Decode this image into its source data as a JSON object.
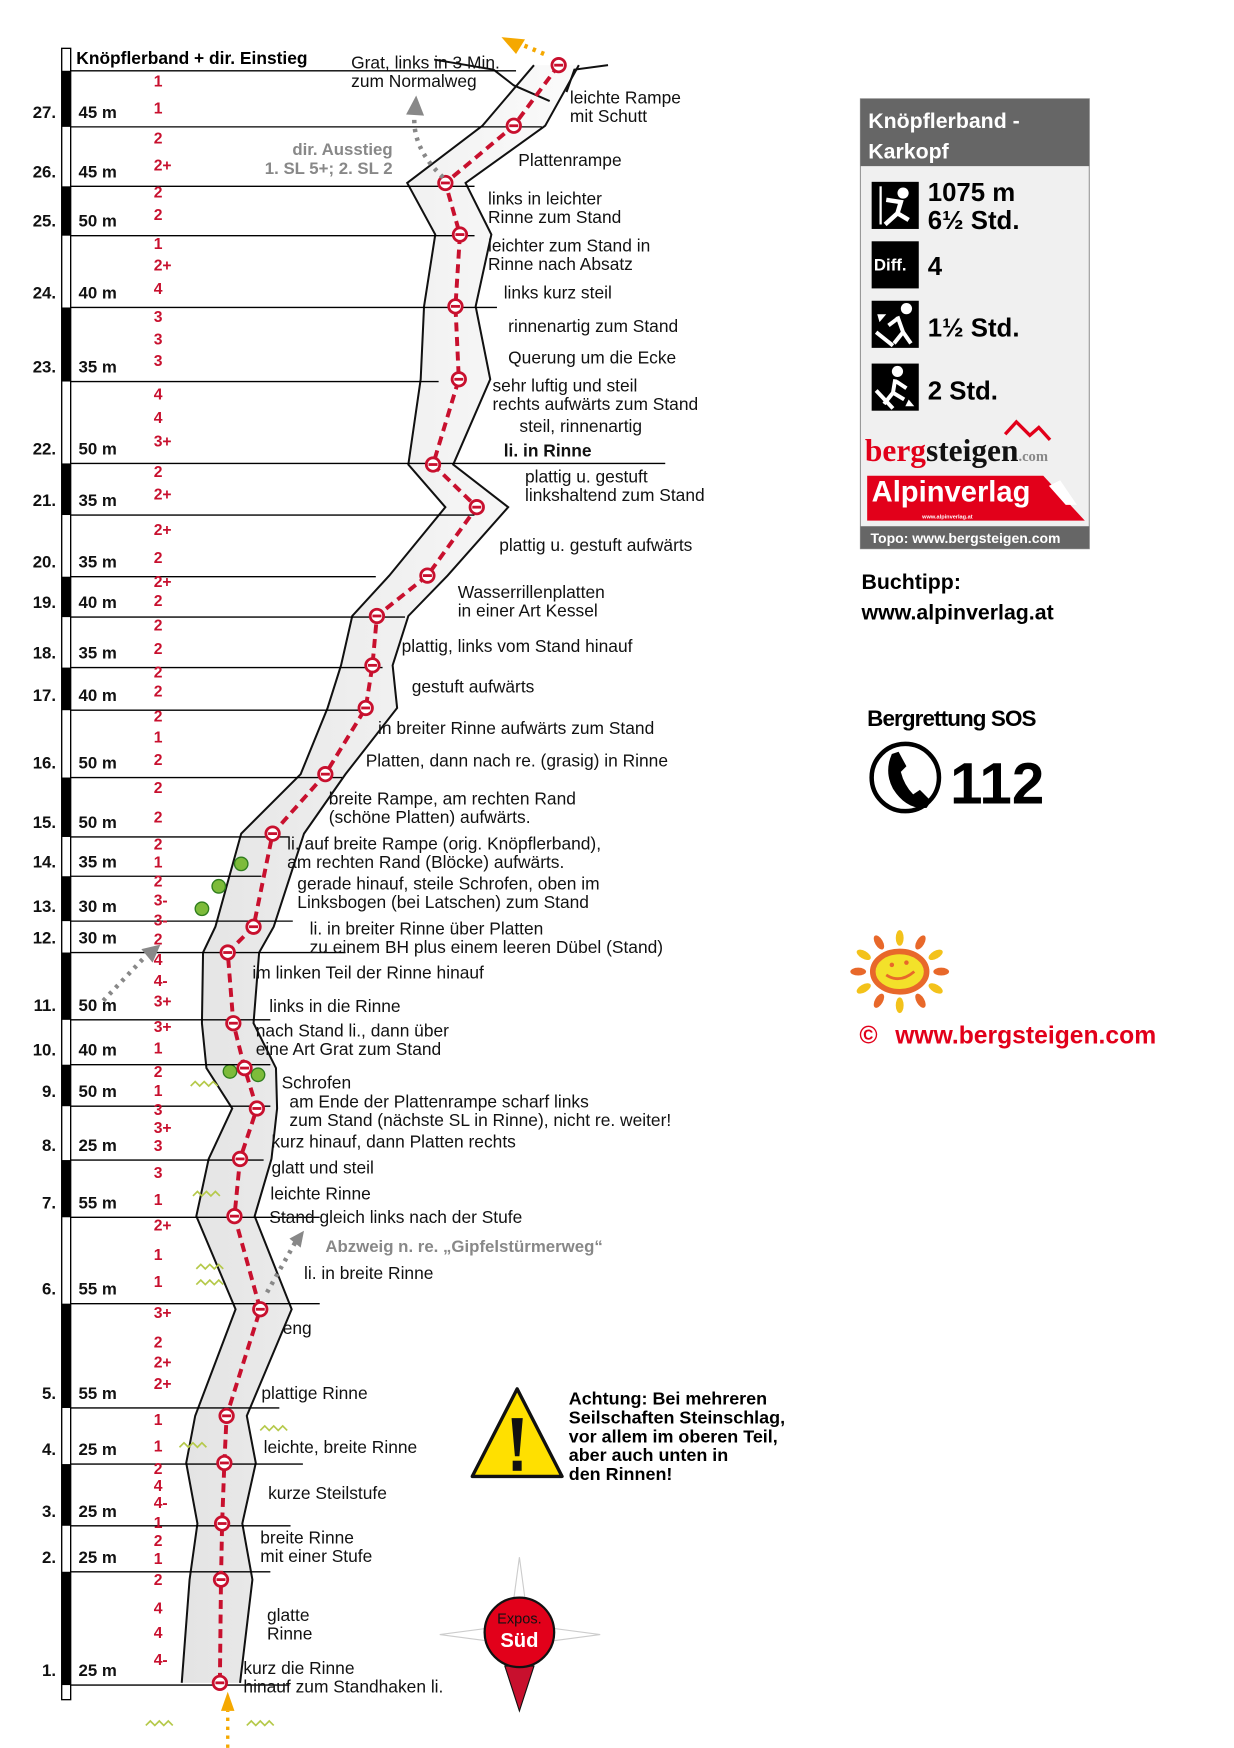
{
  "header": {
    "title": "Knöpflerband + dir. Einstieg"
  },
  "pitches": [
    {
      "num": "27.",
      "length": "45 m",
      "grades": [
        "1",
        "1"
      ]
    },
    {
      "num": "26.",
      "length": "45 m",
      "grades": [
        "2",
        "2+"
      ]
    },
    {
      "num": "25.",
      "length": "50 m",
      "grades": [
        "2",
        "2"
      ]
    },
    {
      "num": "24.",
      "length": "40 m",
      "grades": [
        "1",
        "2+",
        "4"
      ]
    },
    {
      "num": "23.",
      "length": "35 m",
      "grades": [
        "3",
        "3",
        "3"
      ]
    },
    {
      "num": "22.",
      "length": "50 m",
      "grades": [
        "4",
        "4",
        "3+"
      ]
    },
    {
      "num": "21.",
      "length": "35 m",
      "grades": [
        "2",
        "2+"
      ]
    },
    {
      "num": "20.",
      "length": "35 m",
      "grades": [
        "2+",
        "2"
      ]
    },
    {
      "num": "19.",
      "length": "40 m",
      "grades": [
        "2+",
        "2"
      ]
    },
    {
      "num": "18.",
      "length": "35 m",
      "grades": [
        "2",
        "2"
      ]
    },
    {
      "num": "17.",
      "length": "40 m",
      "grades": [
        "2",
        "2"
      ]
    },
    {
      "num": "16.",
      "length": "50 m",
      "grades": [
        "2",
        "1",
        "2"
      ]
    },
    {
      "num": "15.",
      "length": "50 m",
      "grades": [
        "2",
        "2"
      ]
    },
    {
      "num": "14.",
      "length": "35 m",
      "grades": [
        "2",
        "1"
      ]
    },
    {
      "num": "13.",
      "length": "30 m",
      "grades": [
        "2",
        "3-"
      ]
    },
    {
      "num": "12.",
      "length": "30 m",
      "grades": [
        "3-",
        "2"
      ]
    },
    {
      "num": "11.",
      "length": "50 m",
      "grades": [
        "4",
        "4-",
        "3+"
      ]
    },
    {
      "num": "10.",
      "length": "40 m",
      "grades": [
        "3+",
        "1"
      ]
    },
    {
      "num": "9.",
      "length": "50 m",
      "grades": [
        "2",
        "1"
      ]
    },
    {
      "num": "8.",
      "length": "25 m",
      "grades": [
        "3",
        "3+",
        "3"
      ]
    },
    {
      "num": "7.",
      "length": "55 m",
      "grades": [
        "3",
        "1"
      ]
    },
    {
      "num": "6.",
      "length": "55 m",
      "grades": [
        "2+",
        "1",
        "1"
      ]
    },
    {
      "num": "5.",
      "length": "55 m",
      "grades": [
        "3+",
        "2",
        "2+",
        "2+"
      ]
    },
    {
      "num": "4.",
      "length": "25 m",
      "grades": [
        "1",
        "1"
      ]
    },
    {
      "num": "3.",
      "length": "25 m",
      "grades": [
        "2",
        "4",
        "4-"
      ]
    },
    {
      "num": "2.",
      "length": "25 m",
      "grades": [
        "1",
        "2",
        "1"
      ]
    },
    {
      "num": "1.",
      "length": "25 m",
      "grades": [
        "2",
        "4",
        "4",
        "4-"
      ]
    }
  ],
  "descriptions": [
    [
      "Grat, links in 3 Min.",
      "zum Normalweg"
    ],
    [
      "leichte Rampe",
      "mit Schutt"
    ],
    [
      "Plattenrampe"
    ],
    [
      "links in leichter",
      "Rinne zum Stand"
    ],
    [
      "leichter zum Stand in",
      "Rinne nach Absatz"
    ],
    [
      "links kurz steil"
    ],
    [
      "rinnenartig zum Stand"
    ],
    [
      "Querung um die Ecke"
    ],
    [
      "sehr luftig und steil",
      "rechts aufwärts zum Stand"
    ],
    [
      "steil, rinnenartig"
    ],
    [
      "li. in Rinne"
    ],
    [
      "plattig u. gestuft",
      "linkshaltend zum Stand"
    ],
    [
      "plattig u. gestuft aufwärts"
    ],
    [
      "Wasserrillenplatten",
      "in einer Art Kessel"
    ],
    [
      "plattig, links vom Stand hinauf"
    ],
    [
      "gestuft aufwärts"
    ],
    [
      "in breiter Rinne aufwärts zum Stand"
    ],
    [
      "Platten, dann nach re. (grasig) in Rinne"
    ],
    [
      "breite Rampe, am rechten Rand",
      "(schöne Platten) aufwärts."
    ],
    [
      "li. auf breite Rampe (orig. Knöpflerband),",
      "am rechten Rand (Blöcke) aufwärts."
    ],
    [
      "gerade hinauf, steile Schrofen, oben im",
      "Linksbogen (bei Latschen) zum Stand"
    ],
    [
      "li. in breiter Rinne über Platten",
      "zu einem BH plus einem leeren Dübel (Stand)"
    ],
    [
      "im linken Teil der Rinne hinauf"
    ],
    [
      "links in die Rinne"
    ],
    [
      "nach Stand li., dann über",
      "eine Art Grat zum Stand"
    ],
    [
      "Schrofen"
    ],
    [
      "am Ende der Plattenrampe scharf links",
      "zum Stand (nächste SL in Rinne), nicht re. weiter!"
    ],
    [
      "kurz hinauf, dann Platten rechts"
    ],
    [
      "glatt und steil"
    ],
    [
      "leichte Rinne"
    ],
    [
      "Stand gleich links nach der Stufe"
    ],
    [
      "li. in breite Rinne"
    ],
    [
      "eng"
    ],
    [
      "plattige Rinne"
    ],
    [
      "leichte, breite Rinne"
    ],
    [
      "kurze Steilstufe"
    ],
    [
      "breite Rinne",
      "mit einer Stufe"
    ],
    [
      "glatte",
      "Rinne"
    ],
    [
      "kurz die Rinne",
      "hinauf zum Standhaken li."
    ]
  ],
  "variants": {
    "direct_exit": [
      "dir. Ausstieg",
      "1. SL 5+; 2. SL 2"
    ],
    "branch": "Abzweig n. re. „Gipfelstürmerweg“"
  },
  "info_box": {
    "title": [
      "Knöpflerband -",
      "Karkopf"
    ],
    "height_gain": "1075 m",
    "climb_time": "6½ Std.",
    "difficulty_label": "Diff.",
    "difficulty": "4",
    "approach_time": "1½ Std.",
    "descent_time": "2 Std.",
    "logo_bergsteigen": "bergsteigen.com",
    "logo_alpinverlag": "Alpinverlag",
    "logo_alpinverlag_url": "www.alpinverlag.at",
    "topo_credit": "Topo: www.bergsteigen.com",
    "icons": [
      "climber-icon",
      "difficulty-icon",
      "approach-hiker-icon",
      "descent-hiker-icon"
    ]
  },
  "book_tip": [
    "Buchtipp:",
    "www.alpinverlag.at"
  ],
  "rescue": {
    "title": "Bergrettung SOS",
    "number": "112",
    "icon": "phone-icon"
  },
  "copyright": {
    "symbol": "©",
    "url": "www.bergsteigen.com"
  },
  "warning": {
    "icon": "warning-triangle-icon",
    "lines": [
      "Achtung: Bei mehreren",
      "Seilschaften Steinschlag,",
      "vor allem im oberen Teil,",
      "aber auch unten in",
      "den Rinnen!"
    ]
  },
  "compass": {
    "label": "Expos.",
    "direction": "Süd"
  },
  "colors": {
    "route": "#c8102e",
    "panel_header": "#666666",
    "panel_bg": "#f0f0f0",
    "brand_red": "#e2001a",
    "warning_yellow": "#ffe000",
    "variant_gray": "#888888",
    "exit_arrow": "#f5a800"
  }
}
